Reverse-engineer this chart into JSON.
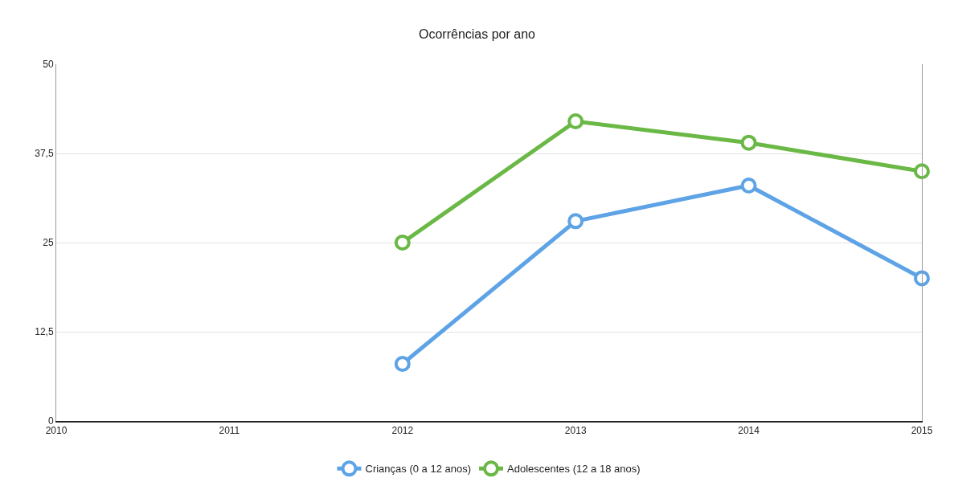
{
  "chart_data": {
    "type": "line",
    "title": "Ocorrências por ano",
    "x": [
      2012,
      2013,
      2014,
      2015
    ],
    "series": [
      {
        "name": "Crianças (0 a 12 anos)",
        "color": "#5ea3e6",
        "values": [
          8,
          28,
          33,
          20
        ]
      },
      {
        "name": "Adolescentes (12 a 18 anos)",
        "color": "#6ab845",
        "values": [
          25,
          42,
          39,
          35
        ]
      }
    ],
    "xlim": [
      2010,
      2015
    ],
    "xticks": [
      2010,
      2011,
      2012,
      2013,
      2014,
      2015
    ],
    "ylim": [
      0,
      50
    ],
    "yticks": [
      0,
      {
        "value": 12.5,
        "label": "12,5"
      },
      25,
      {
        "value": 37.5,
        "label": "37,5"
      },
      50
    ],
    "grid": "y",
    "legend": "bottom",
    "marker": "circle",
    "line_style": "solid"
  }
}
